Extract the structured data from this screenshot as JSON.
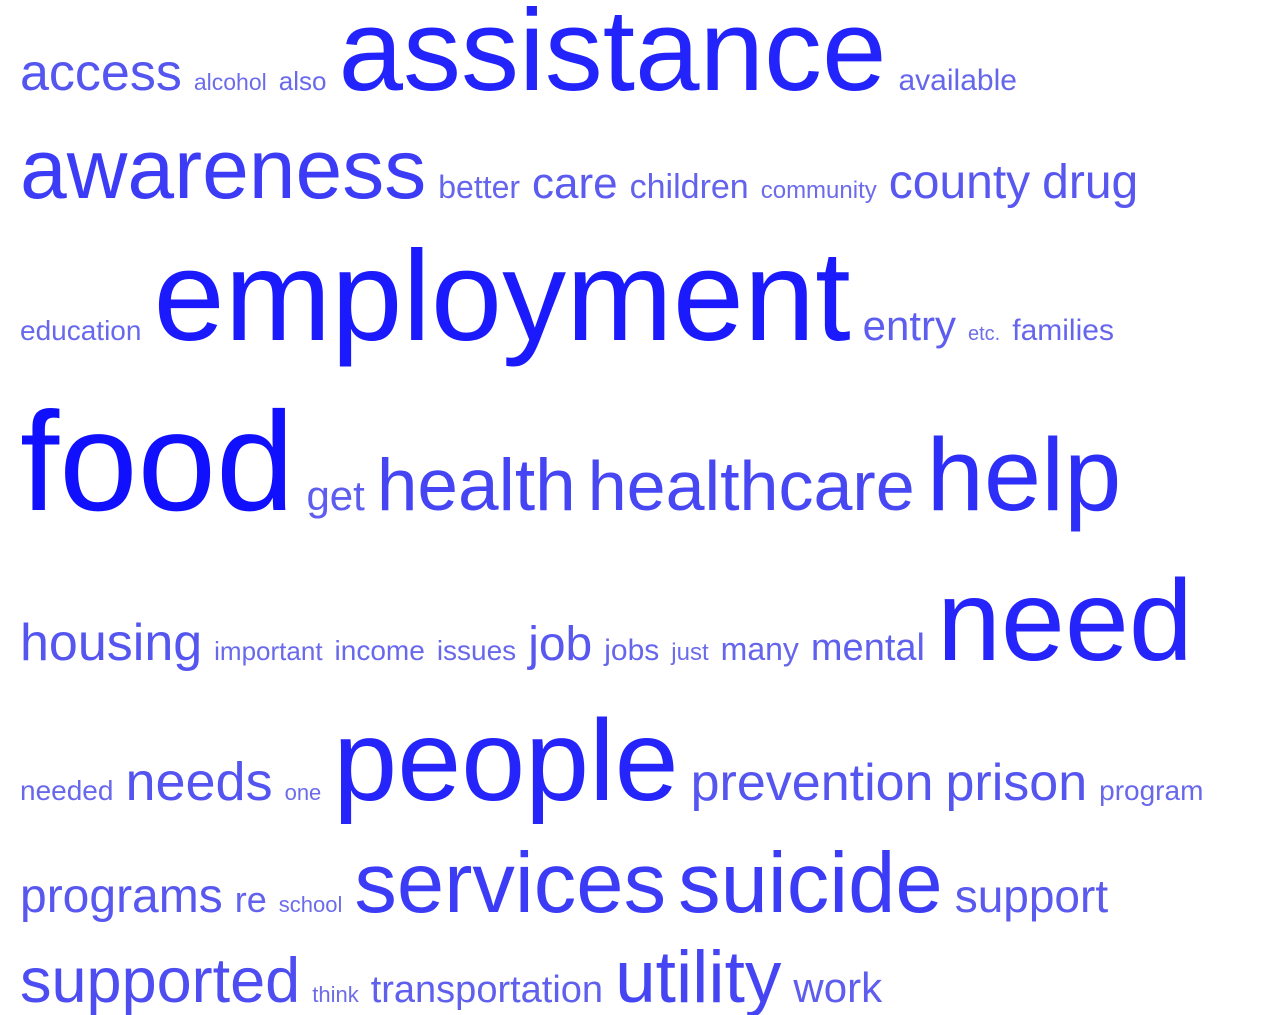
{
  "chart_data": {
    "type": "wordcloud",
    "words": [
      "access",
      "alcohol",
      "also",
      "assistance",
      "available",
      "awareness",
      "better",
      "care",
      "children",
      "community",
      "county",
      "drug",
      "education",
      "employment",
      "entry",
      "etc.",
      "families",
      "food",
      "get",
      "health",
      "healthcare",
      "help",
      "housing",
      "important",
      "income",
      "issues",
      "job",
      "jobs",
      "just",
      "many",
      "mental",
      "need",
      "needed",
      "needs",
      "one",
      "people",
      "prevention",
      "prison",
      "program",
      "programs",
      "re",
      "school",
      "services",
      "suicide",
      "support",
      "supported",
      "think",
      "transportation",
      "utility",
      "work"
    ],
    "values": [
      52,
      23,
      26,
      116,
      30,
      84,
      32,
      44,
      34,
      24,
      48,
      48,
      28,
      128,
      42,
      20,
      30,
      141,
      42,
      73,
      70,
      103,
      52,
      26,
      28,
      28,
      48,
      30,
      24,
      32,
      38,
      115,
      28,
      54,
      22,
      115,
      52,
      52,
      28,
      48,
      36,
      22,
      85,
      85,
      46,
      63,
      22,
      38,
      73,
      42
    ],
    "color": "#1010ff"
  }
}
